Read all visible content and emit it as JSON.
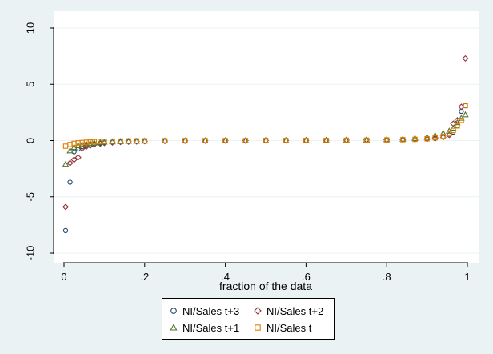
{
  "chart_data": {
    "type": "scatter",
    "title": "",
    "xlabel": "fraction of the data",
    "ylabel": "",
    "xlim": [
      0,
      1
    ],
    "ylim": [
      -10,
      10
    ],
    "xticks": [
      0,
      0.2,
      0.4,
      0.6,
      0.8,
      1
    ],
    "xtick_labels": [
      "0",
      ".2",
      ".4",
      ".6",
      ".8",
      "1"
    ],
    "yticks": [
      -10,
      -5,
      0,
      5,
      10
    ],
    "ytick_labels": [
      "-10",
      "-5",
      "0",
      "5",
      "10"
    ],
    "grid": "horizontal",
    "legend_position": "bottom",
    "series": [
      {
        "name": "NI/Sales t+3",
        "marker": "circle",
        "color": "#1a476f",
        "points": [
          [
            0.004,
            -8.0
          ],
          [
            0.015,
            -3.7
          ],
          [
            0.025,
            -1.0
          ],
          [
            0.035,
            -0.75
          ],
          [
            0.045,
            -0.55
          ],
          [
            0.055,
            -0.45
          ],
          [
            0.065,
            -0.38
          ],
          [
            0.075,
            -0.3
          ],
          [
            0.09,
            -0.25
          ],
          [
            0.1,
            -0.2
          ],
          [
            0.12,
            -0.15
          ],
          [
            0.14,
            -0.12
          ],
          [
            0.16,
            -0.09
          ],
          [
            0.18,
            -0.07
          ],
          [
            0.2,
            -0.05
          ],
          [
            0.25,
            -0.03
          ],
          [
            0.3,
            -0.02
          ],
          [
            0.35,
            -0.01
          ],
          [
            0.4,
            0.0
          ],
          [
            0.45,
            0.0
          ],
          [
            0.5,
            0.01
          ],
          [
            0.55,
            0.01
          ],
          [
            0.6,
            0.02
          ],
          [
            0.65,
            0.03
          ],
          [
            0.7,
            0.04
          ],
          [
            0.75,
            0.05
          ],
          [
            0.8,
            0.07
          ],
          [
            0.84,
            0.09
          ],
          [
            0.87,
            0.12
          ],
          [
            0.9,
            0.17
          ],
          [
            0.92,
            0.25
          ],
          [
            0.94,
            0.35
          ],
          [
            0.955,
            0.5
          ],
          [
            0.965,
            0.75
          ],
          [
            0.975,
            1.3
          ],
          [
            0.985,
            2.6
          ],
          [
            0.995,
            3.1
          ]
        ]
      },
      {
        "name": "NI/Sales t+2",
        "marker": "diamond",
        "color": "#90353b",
        "points": [
          [
            0.004,
            -5.9
          ],
          [
            0.015,
            -2.0
          ],
          [
            0.025,
            -1.7
          ],
          [
            0.035,
            -1.5
          ],
          [
            0.045,
            -0.7
          ],
          [
            0.055,
            -0.55
          ],
          [
            0.065,
            -0.45
          ],
          [
            0.075,
            -0.35
          ],
          [
            0.09,
            -0.28
          ],
          [
            0.1,
            -0.22
          ],
          [
            0.12,
            -0.17
          ],
          [
            0.14,
            -0.13
          ],
          [
            0.16,
            -0.1
          ],
          [
            0.18,
            -0.08
          ],
          [
            0.2,
            -0.06
          ],
          [
            0.25,
            -0.04
          ],
          [
            0.3,
            -0.02
          ],
          [
            0.35,
            -0.01
          ],
          [
            0.4,
            0.0
          ],
          [
            0.45,
            0.0
          ],
          [
            0.5,
            0.01
          ],
          [
            0.55,
            0.01
          ],
          [
            0.6,
            0.02
          ],
          [
            0.65,
            0.03
          ],
          [
            0.7,
            0.04
          ],
          [
            0.75,
            0.05
          ],
          [
            0.8,
            0.06
          ],
          [
            0.84,
            0.08
          ],
          [
            0.87,
            0.1
          ],
          [
            0.9,
            0.13
          ],
          [
            0.92,
            0.18
          ],
          [
            0.94,
            0.3
          ],
          [
            0.955,
            0.5
          ],
          [
            0.965,
            1.5
          ],
          [
            0.975,
            1.8
          ],
          [
            0.985,
            3.0
          ],
          [
            0.995,
            7.3
          ]
        ]
      },
      {
        "name": "NI/Sales t+1",
        "marker": "triangle",
        "color": "#55752f",
        "points": [
          [
            0.004,
            -2.1
          ],
          [
            0.015,
            -0.9
          ],
          [
            0.025,
            -0.6
          ],
          [
            0.035,
            -0.45
          ],
          [
            0.045,
            -0.35
          ],
          [
            0.055,
            -0.3
          ],
          [
            0.065,
            -0.25
          ],
          [
            0.075,
            -0.2
          ],
          [
            0.09,
            -0.16
          ],
          [
            0.1,
            -0.13
          ],
          [
            0.12,
            -0.1
          ],
          [
            0.14,
            -0.08
          ],
          [
            0.16,
            -0.06
          ],
          [
            0.18,
            -0.05
          ],
          [
            0.2,
            -0.04
          ],
          [
            0.25,
            -0.02
          ],
          [
            0.3,
            -0.01
          ],
          [
            0.35,
            0.0
          ],
          [
            0.4,
            0.0
          ],
          [
            0.45,
            0.0
          ],
          [
            0.5,
            0.01
          ],
          [
            0.55,
            0.01
          ],
          [
            0.6,
            0.02
          ],
          [
            0.65,
            0.03
          ],
          [
            0.7,
            0.04
          ],
          [
            0.75,
            0.06
          ],
          [
            0.8,
            0.09
          ],
          [
            0.84,
            0.13
          ],
          [
            0.87,
            0.2
          ],
          [
            0.9,
            0.3
          ],
          [
            0.92,
            0.45
          ],
          [
            0.94,
            0.65
          ],
          [
            0.955,
            0.85
          ],
          [
            0.965,
            1.1
          ],
          [
            0.975,
            1.6
          ],
          [
            0.985,
            2.0
          ],
          [
            0.995,
            2.3
          ]
        ]
      },
      {
        "name": "NI/Sales t",
        "marker": "square",
        "color": "#e37e00",
        "points": [
          [
            0.004,
            -0.5
          ],
          [
            0.015,
            -0.35
          ],
          [
            0.025,
            -0.25
          ],
          [
            0.035,
            -0.2
          ],
          [
            0.045,
            -0.17
          ],
          [
            0.055,
            -0.14
          ],
          [
            0.065,
            -0.12
          ],
          [
            0.075,
            -0.1
          ],
          [
            0.09,
            -0.08
          ],
          [
            0.1,
            -0.07
          ],
          [
            0.12,
            -0.05
          ],
          [
            0.14,
            -0.04
          ],
          [
            0.16,
            -0.03
          ],
          [
            0.18,
            -0.02
          ],
          [
            0.2,
            -0.02
          ],
          [
            0.25,
            -0.01
          ],
          [
            0.3,
            0.0
          ],
          [
            0.35,
            0.0
          ],
          [
            0.4,
            0.0
          ],
          [
            0.45,
            0.0
          ],
          [
            0.5,
            0.01
          ],
          [
            0.55,
            0.01
          ],
          [
            0.6,
            0.02
          ],
          [
            0.65,
            0.02
          ],
          [
            0.7,
            0.03
          ],
          [
            0.75,
            0.04
          ],
          [
            0.8,
            0.06
          ],
          [
            0.84,
            0.08
          ],
          [
            0.87,
            0.11
          ],
          [
            0.9,
            0.16
          ],
          [
            0.92,
            0.25
          ],
          [
            0.94,
            0.38
          ],
          [
            0.955,
            0.6
          ],
          [
            0.965,
            0.9
          ],
          [
            0.975,
            1.3
          ],
          [
            0.985,
            1.8
          ],
          [
            0.995,
            3.1
          ]
        ]
      }
    ]
  },
  "colors": {
    "background": "#eaf2f3",
    "plot_background": "#ffffff",
    "gridline": "#eaf2f3"
  }
}
